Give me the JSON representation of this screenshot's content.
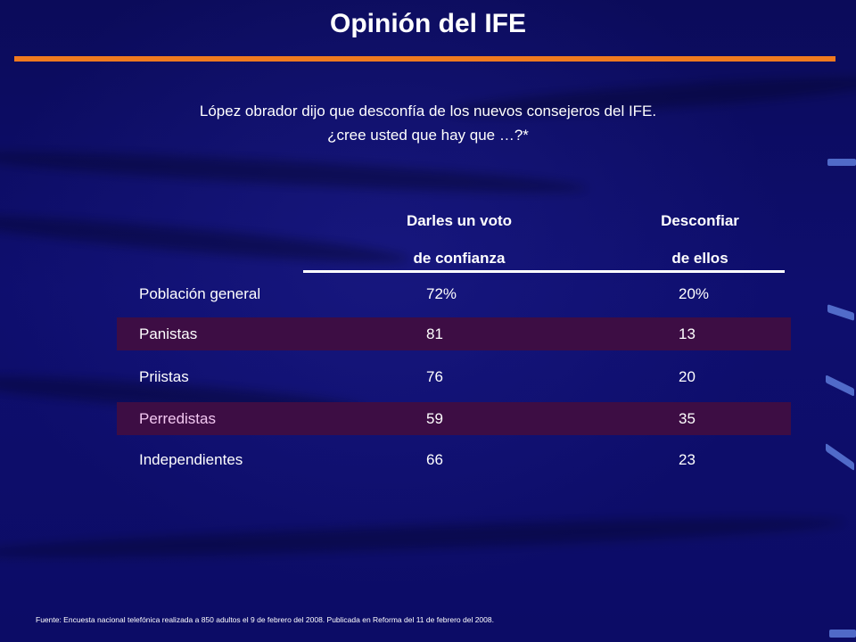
{
  "title": "Opinión del IFE",
  "question": {
    "line1": "López obrador dijo que desconfía de los nuevos consejeros del IFE.",
    "line2": "¿cree usted que hay que …?*"
  },
  "table": {
    "columns": [
      {
        "line1": "Darles un voto",
        "line2": "de confianza"
      },
      {
        "line1": "Desconfiar",
        "line2": "de ellos"
      }
    ],
    "rows": [
      {
        "label": "Población general",
        "voto": "72%",
        "desconfiar": "20%",
        "highlight": false
      },
      {
        "label": "Panistas",
        "voto": "81",
        "desconfiar": "13",
        "highlight": true
      },
      {
        "label": "Priistas",
        "voto": "76",
        "desconfiar": "20",
        "highlight": false
      },
      {
        "label": "Perredistas",
        "voto": "59",
        "desconfiar": "35",
        "highlight": true
      },
      {
        "label": "Independientes",
        "voto": "66",
        "desconfiar": "23",
        "highlight": false
      }
    ]
  },
  "source": "Fuente: Encuesta nacional telefónica realizada a 850 adultos el 9 de febrero del 2008. Publicada en Reforma del 11 de febrero del 2008.",
  "colors": {
    "background": "#0c0c62",
    "accent_rule": "#f07a1f",
    "row_highlight": "#3d0d44",
    "text": "#ffffff"
  }
}
